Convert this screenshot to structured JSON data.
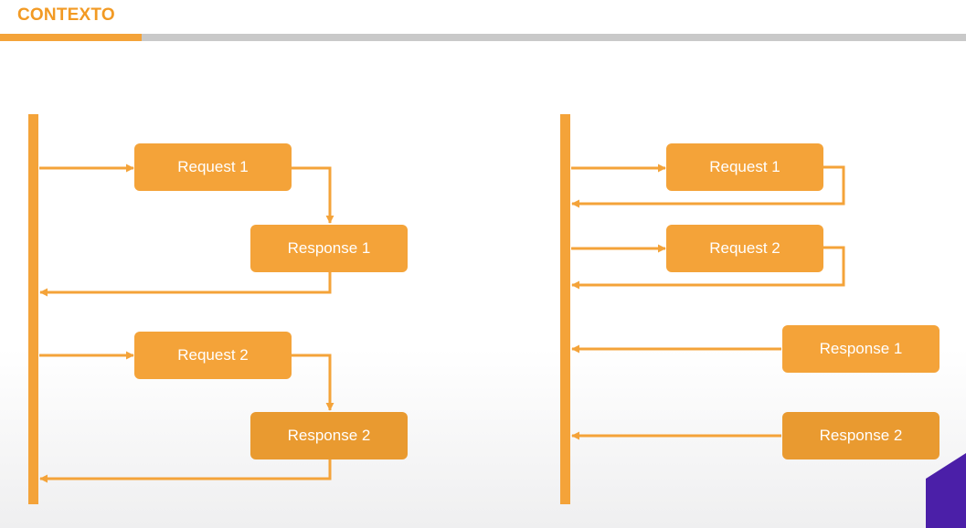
{
  "header": {
    "title": "CONTEXTO",
    "progress": 0.147
  },
  "colors": {
    "accent": "#f4a339",
    "accent_dark": "#e99a30",
    "title": "#f29a24",
    "track": "#c9c9c9",
    "corner": "#4b1fa8"
  },
  "left_diagram": {
    "items": [
      {
        "label": "Request 1"
      },
      {
        "label": "Response 1"
      },
      {
        "label": "Request 2"
      },
      {
        "label": "Response 2"
      }
    ]
  },
  "right_diagram": {
    "items": [
      {
        "label": "Request 1"
      },
      {
        "label": "Request 2"
      },
      {
        "label": "Response 1"
      },
      {
        "label": "Response 2"
      }
    ]
  }
}
